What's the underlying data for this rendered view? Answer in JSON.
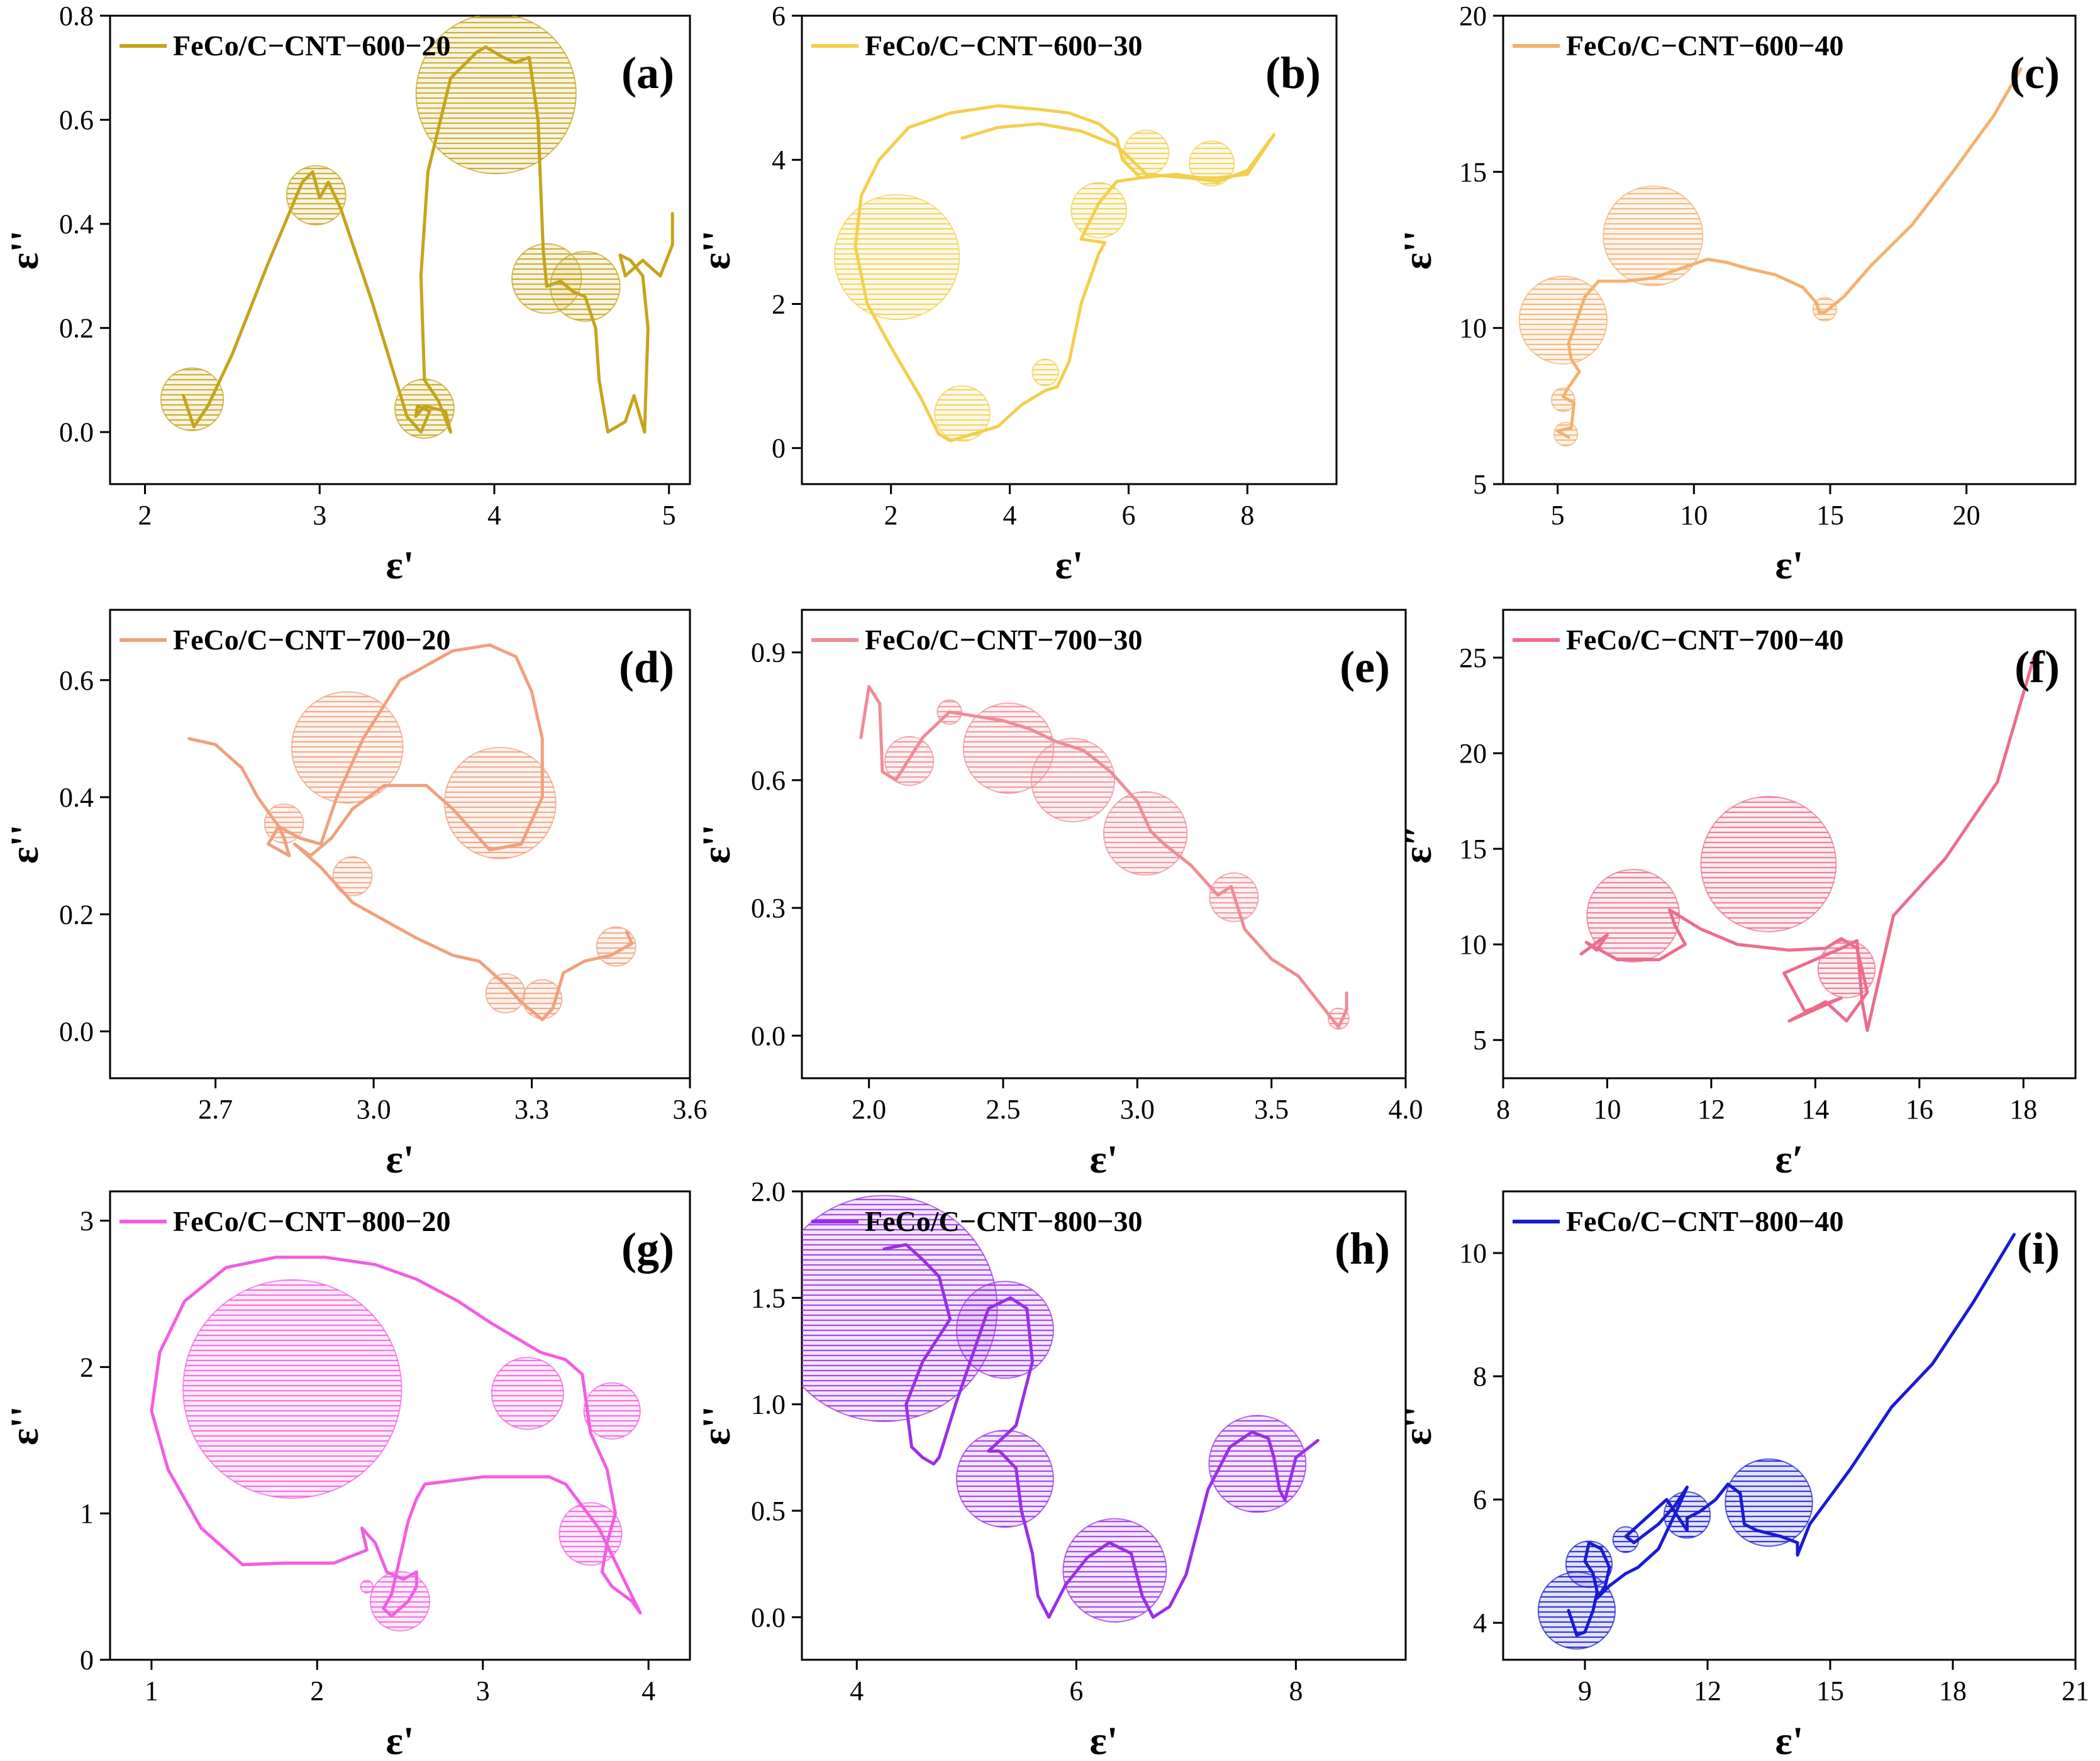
{
  "figure": {
    "panels": [
      {
        "id": "a",
        "label": "(a)",
        "legend": "FeCo/C−CNT−600−20",
        "color": "#c4a41c",
        "xlabel": "ε'",
        "ylabel": "ε''"
      },
      {
        "id": "b",
        "label": "(b)",
        "legend": "FeCo/C−CNT−600−30",
        "color": "#f2cf4e",
        "xlabel": "ε'",
        "ylabel": "ε''"
      },
      {
        "id": "c",
        "label": "(c)",
        "legend": "FeCo/C−CNT−600−40",
        "color": "#f5b06e",
        "xlabel": "ε'",
        "ylabel": "ε''"
      },
      {
        "id": "d",
        "label": "(d)",
        "legend": "FeCo/C−CNT−700−20",
        "color": "#f0a07e",
        "xlabel": "ε'",
        "ylabel": "ε''"
      },
      {
        "id": "e",
        "label": "(e)",
        "legend": "FeCo/C−CNT−700−30",
        "color": "#ef8c95",
        "xlabel": "ε'",
        "ylabel": "ε''"
      },
      {
        "id": "f",
        "label": "(f)",
        "legend": "FeCo/C−CNT−700−40",
        "color": "#ec6d8a",
        "xlabel": "ε′",
        "ylabel": "ε″"
      },
      {
        "id": "g",
        "label": "(g)",
        "legend": "FeCo/C−CNT−800−20",
        "color": "#f25ee0",
        "xlabel": "ε'",
        "ylabel": "ε''"
      },
      {
        "id": "h",
        "label": "(h)",
        "legend": "FeCo/C−CNT−800−30",
        "color": "#9a2fe6",
        "xlabel": "ε'",
        "ylabel": "ε''"
      },
      {
        "id": "i",
        "label": "(i)",
        "legend": "FeCo/C−CNT−800−40",
        "color": "#1a1ad4",
        "xlabel": "ε'",
        "ylabel": "ε''"
      }
    ]
  },
  "chart_data": [
    {
      "type": "line",
      "panel": "a",
      "series": [
        {
          "name": "FeCo/C−CNT−600−20"
        }
      ],
      "xlim": [
        1.8,
        5.12
      ],
      "ylim": [
        -0.1,
        0.8
      ],
      "xticks": [
        2,
        3,
        4,
        5
      ],
      "yticks": [
        0.0,
        0.2,
        0.4,
        0.6,
        0.8
      ],
      "x": [
        2.22,
        2.28,
        2.36,
        2.5,
        2.7,
        2.9,
        2.96,
        3.0,
        3.05,
        3.12,
        3.3,
        3.5,
        3.58,
        3.63,
        3.56,
        3.55,
        3.6,
        3.72,
        3.75,
        3.68,
        3.6,
        3.58,
        3.62,
        3.75,
        3.9,
        3.95,
        4.0,
        4.05,
        4.12,
        4.2,
        4.25,
        4.28,
        4.3,
        4.38,
        4.45,
        4.52,
        4.58,
        4.6,
        4.65,
        4.75,
        4.8,
        4.86,
        4.88,
        4.85,
        4.78,
        4.72,
        4.75,
        4.85,
        4.95,
        5.02,
        5.02
      ],
      "y": [
        0.07,
        0.01,
        0.05,
        0.15,
        0.32,
        0.48,
        0.5,
        0.45,
        0.48,
        0.43,
        0.25,
        0.03,
        0.0,
        0.04,
        0.05,
        0.03,
        0.05,
        0.04,
        0.0,
        0.06,
        0.1,
        0.3,
        0.5,
        0.68,
        0.73,
        0.74,
        0.73,
        0.72,
        0.71,
        0.72,
        0.6,
        0.35,
        0.28,
        0.29,
        0.27,
        0.26,
        0.2,
        0.1,
        0.0,
        0.02,
        0.07,
        0.0,
        0.2,
        0.3,
        0.33,
        0.34,
        0.3,
        0.33,
        0.3,
        0.36,
        0.42
      ],
      "circles": [
        {
          "x": 2.27,
          "y": 0.063,
          "r": 0.09
        },
        {
          "x": 2.98,
          "y": 0.455,
          "r": 0.085
        },
        {
          "x": 3.6,
          "y": 0.045,
          "r": 0.085
        },
        {
          "x": 4.01,
          "y": 0.65,
          "r": 0.23
        },
        {
          "x": 4.3,
          "y": 0.295,
          "r": 0.1
        },
        {
          "x": 4.52,
          "y": 0.28,
          "r": 0.1
        }
      ]
    },
    {
      "type": "line",
      "panel": "b",
      "series": [
        {
          "name": "FeCo/C−CNT−600−30"
        }
      ],
      "xlim": [
        0.5,
        9.5
      ],
      "ylim": [
        -0.5,
        6
      ],
      "xticks": [
        2,
        4,
        6,
        8
      ],
      "yticks": [
        0,
        2,
        4,
        6
      ],
      "x": [
        3.2,
        3.8,
        4.5,
        5.2,
        5.8,
        6.3,
        7.0,
        7.5,
        8.0,
        8.45,
        8.0,
        7.5,
        7.2,
        6.8,
        6.2,
        5.8,
        5.5,
        5.2,
        5.6,
        5.5,
        5.2,
        5.0,
        4.8,
        4.6,
        4.2,
        3.8,
        3.4,
        3.0,
        2.8,
        2.5,
        2.0,
        1.6,
        1.4,
        1.5,
        1.8,
        2.3,
        3.0,
        3.8,
        4.5,
        5.0,
        5.5,
        5.8,
        5.9,
        6.2
      ],
      "y": [
        4.3,
        4.45,
        4.5,
        4.4,
        4.2,
        3.8,
        3.75,
        3.7,
        3.85,
        4.35,
        3.8,
        3.75,
        3.75,
        3.8,
        3.75,
        3.7,
        3.4,
        2.9,
        2.85,
        2.7,
        2.0,
        1.2,
        0.85,
        0.8,
        0.6,
        0.3,
        0.2,
        0.1,
        0.2,
        0.7,
        1.4,
        2.0,
        2.8,
        3.5,
        4.0,
        4.45,
        4.65,
        4.75,
        4.7,
        4.65,
        4.5,
        4.3,
        4.0,
        3.75
      ],
      "circles": [
        {
          "x": 2.1,
          "y": 2.65,
          "r": 0.95
        },
        {
          "x": 3.2,
          "y": 0.48,
          "r": 0.42
        },
        {
          "x": 5.5,
          "y": 3.3,
          "r": 0.42
        },
        {
          "x": 6.3,
          "y": 4.1,
          "r": 0.34
        },
        {
          "x": 7.4,
          "y": 3.95,
          "r": 0.34
        },
        {
          "x": 4.6,
          "y": 1.05,
          "r": 0.2
        }
      ]
    },
    {
      "type": "line",
      "panel": "c",
      "series": [
        {
          "name": "FeCo/C−CNT−600−40"
        }
      ],
      "xlim": [
        3,
        24
      ],
      "ylim": [
        5,
        20
      ],
      "xticks": [
        5,
        10,
        15,
        20
      ],
      "yticks": [
        5,
        10,
        15,
        20
      ],
      "x": [
        5.4,
        5.0,
        5.5,
        5.6,
        5.2,
        5.4,
        5.8,
        5.5,
        5.4,
        6.0,
        6.5,
        7.5,
        8.5,
        9.5,
        10.5,
        11.2,
        12.0,
        13.0,
        14.0,
        14.5,
        14.6,
        14.8,
        15.5,
        16.5,
        18.0,
        19.5,
        21.0,
        22.0
      ],
      "y": [
        6.5,
        6.7,
        6.8,
        7.6,
        7.8,
        8.1,
        8.6,
        9.0,
        9.5,
        11.0,
        11.5,
        11.5,
        11.6,
        11.9,
        12.2,
        12.1,
        11.9,
        11.7,
        11.3,
        10.8,
        10.5,
        10.5,
        11.0,
        12.0,
        13.3,
        15.0,
        16.8,
        18.3
      ],
      "circles": [
        {
          "x": 5.2,
          "y": 10.25,
          "r": 1.5
        },
        {
          "x": 8.5,
          "y": 12.95,
          "r": 1.7
        },
        {
          "x": 5.2,
          "y": 7.7,
          "r": 0.4
        },
        {
          "x": 5.3,
          "y": 6.6,
          "r": 0.4
        },
        {
          "x": 14.8,
          "y": 10.6,
          "r": 0.4
        }
      ]
    },
    {
      "type": "line",
      "panel": "d",
      "series": [
        {
          "name": "FeCo/C−CNT−700−20"
        }
      ],
      "xlim": [
        2.5,
        3.6
      ],
      "ylim": [
        -0.08,
        0.72
      ],
      "xticks": [
        2.7,
        3.0,
        3.3,
        3.6
      ],
      "yticks": [
        0.0,
        0.2,
        0.4,
        0.6
      ],
      "x": [
        2.65,
        2.7,
        2.75,
        2.78,
        2.82,
        2.8,
        2.84,
        2.83,
        2.82,
        2.86,
        2.9,
        2.93,
        2.98,
        3.05,
        3.15,
        3.22,
        3.27,
        3.3,
        3.32,
        3.32,
        3.28,
        3.22,
        3.15,
        3.1,
        3.02,
        2.96,
        2.92,
        2.88,
        2.85,
        2.9,
        2.96,
        3.0,
        3.02,
        3.08,
        3.15,
        3.2,
        3.25,
        3.28,
        3.32,
        3.34,
        3.36,
        3.4,
        3.45,
        3.49,
        3.48
      ],
      "y": [
        0.5,
        0.49,
        0.45,
        0.4,
        0.35,
        0.32,
        0.3,
        0.33,
        0.35,
        0.33,
        0.32,
        0.4,
        0.5,
        0.6,
        0.65,
        0.66,
        0.64,
        0.58,
        0.5,
        0.4,
        0.32,
        0.31,
        0.38,
        0.42,
        0.42,
        0.38,
        0.33,
        0.3,
        0.32,
        0.28,
        0.22,
        0.2,
        0.19,
        0.16,
        0.13,
        0.12,
        0.08,
        0.05,
        0.02,
        0.04,
        0.1,
        0.12,
        0.13,
        0.15,
        0.17
      ],
      "circles": [
        {
          "x": 2.95,
          "y": 0.485,
          "r": 0.1
        },
        {
          "x": 3.24,
          "y": 0.39,
          "r": 0.1
        },
        {
          "x": 2.83,
          "y": 0.355,
          "r": 0.035
        },
        {
          "x": 2.96,
          "y": 0.265,
          "r": 0.035
        },
        {
          "x": 3.25,
          "y": 0.065,
          "r": 0.035
        },
        {
          "x": 3.32,
          "y": 0.055,
          "r": 0.035
        },
        {
          "x": 3.46,
          "y": 0.145,
          "r": 0.035
        }
      ]
    },
    {
      "type": "line",
      "panel": "e",
      "series": [
        {
          "name": "FeCo/C−CNT−700−30"
        }
      ],
      "xlim": [
        1.75,
        4.0
      ],
      "ylim": [
        -0.1,
        1.0
      ],
      "xticks": [
        2.0,
        2.5,
        3.0,
        3.5,
        4.0
      ],
      "yticks": [
        0.0,
        0.3,
        0.6,
        0.9
      ],
      "x": [
        1.97,
        2.0,
        2.04,
        2.05,
        2.1,
        2.15,
        2.2,
        2.3,
        2.4,
        2.5,
        2.6,
        2.7,
        2.8,
        2.9,
        3.0,
        3.05,
        3.1,
        3.2,
        3.3,
        3.35,
        3.4,
        3.5,
        3.6,
        3.7,
        3.75,
        3.78,
        3.78
      ],
      "y": [
        0.7,
        0.82,
        0.78,
        0.62,
        0.6,
        0.65,
        0.7,
        0.76,
        0.75,
        0.74,
        0.72,
        0.69,
        0.67,
        0.62,
        0.55,
        0.48,
        0.45,
        0.4,
        0.33,
        0.35,
        0.25,
        0.18,
        0.14,
        0.06,
        0.02,
        0.06,
        0.1
      ],
      "circles": [
        {
          "x": 2.15,
          "y": 0.645,
          "r": 0.07
        },
        {
          "x": 2.3,
          "y": 0.76,
          "r": 0.035
        },
        {
          "x": 2.52,
          "y": 0.675,
          "r": 0.13
        },
        {
          "x": 2.76,
          "y": 0.6,
          "r": 0.12
        },
        {
          "x": 3.03,
          "y": 0.475,
          "r": 0.12
        },
        {
          "x": 3.36,
          "y": 0.325,
          "r": 0.07
        },
        {
          "x": 3.75,
          "y": 0.04,
          "r": 0.03
        }
      ]
    },
    {
      "type": "line",
      "panel": "f",
      "series": [
        {
          "name": "FeCo/C−CNT−700−40"
        }
      ],
      "xlim": [
        8,
        19
      ],
      "ylim": [
        3,
        27.5
      ],
      "xticks": [
        8,
        10,
        12,
        14,
        16,
        18
      ],
      "yticks": [
        5,
        10,
        15,
        20,
        25
      ],
      "x": [
        9.5,
        10.0,
        9.8,
        9.6,
        10.2,
        11.0,
        11.5,
        11.3,
        11.2,
        11.8,
        12.5,
        13.5,
        14.2,
        14.5,
        14.8,
        15.0,
        14.6,
        14.2,
        13.5,
        14.5,
        13.8,
        13.4,
        14.5,
        14.8,
        14.9,
        15.0,
        15.5,
        16.5,
        17.5,
        18.2
      ],
      "y": [
        9.5,
        10.5,
        9.7,
        10.1,
        9.2,
        9.2,
        10.0,
        11.0,
        11.8,
        10.8,
        10.0,
        9.7,
        9.8,
        10.3,
        9.8,
        7.5,
        6.0,
        7.0,
        6.0,
        7.2,
        6.5,
        8.5,
        9.8,
        10.2,
        7.0,
        5.5,
        11.5,
        14.5,
        18.5,
        25.0
      ],
      "circles": [
        {
          "x": 10.5,
          "y": 11.5,
          "r": 1.3
        },
        {
          "x": 13.1,
          "y": 14.2,
          "r": 1.9
        },
        {
          "x": 14.6,
          "y": 8.7,
          "r": 0.8
        }
      ]
    },
    {
      "type": "line",
      "panel": "g",
      "series": [
        {
          "name": "FeCo/C−CNT−800−20"
        }
      ],
      "xlim": [
        0.75,
        4.25
      ],
      "ylim": [
        0,
        3.2
      ],
      "xticks": [
        1,
        2,
        3,
        4
      ],
      "yticks": [
        0,
        1,
        2,
        3
      ],
      "x": [
        1.55,
        1.3,
        1.1,
        1.0,
        1.05,
        1.2,
        1.45,
        1.75,
        2.05,
        2.35,
        2.6,
        2.85,
        3.05,
        3.2,
        3.35,
        3.5,
        3.6,
        3.65,
        3.75,
        3.8,
        3.75,
        3.72,
        3.78,
        3.9,
        3.95,
        3.7,
        3.5,
        3.4,
        3.0,
        2.65,
        2.6,
        2.55,
        2.5,
        2.45,
        2.4,
        2.45,
        2.55,
        2.6,
        2.6,
        2.52,
        2.42,
        2.35,
        2.27,
        2.3,
        2.1,
        1.8,
        1.55
      ],
      "y": [
        0.65,
        0.9,
        1.3,
        1.7,
        2.1,
        2.45,
        2.68,
        2.75,
        2.75,
        2.7,
        2.6,
        2.45,
        2.3,
        2.2,
        2.1,
        2.05,
        1.95,
        1.55,
        1.3,
        1.0,
        0.8,
        0.6,
        0.5,
        0.4,
        0.32,
        0.9,
        1.2,
        1.25,
        1.25,
        1.2,
        1.1,
        0.95,
        0.7,
        0.45,
        0.35,
        0.3,
        0.4,
        0.5,
        0.6,
        0.55,
        0.6,
        0.8,
        0.9,
        0.75,
        0.66,
        0.66,
        0.65
      ],
      "circles": [
        {
          "x": 1.85,
          "y": 1.85,
          "r": 0.7
        },
        {
          "x": 3.27,
          "y": 1.82,
          "r": 0.23
        },
        {
          "x": 3.78,
          "y": 1.7,
          "r": 0.18
        },
        {
          "x": 3.65,
          "y": 0.86,
          "r": 0.2
        },
        {
          "x": 2.5,
          "y": 0.4,
          "r": 0.19
        },
        {
          "x": 2.3,
          "y": 0.5,
          "r": 0.04
        }
      ]
    },
    {
      "type": "line",
      "panel": "h",
      "series": [
        {
          "name": "FeCo/C−CNT−800−30"
        }
      ],
      "xlim": [
        3.5,
        9.0
      ],
      "ylim": [
        -0.2,
        2.0
      ],
      "xticks": [
        4,
        6,
        8
      ],
      "yticks": [
        0.0,
        0.5,
        1.0,
        1.5,
        2.0
      ],
      "x": [
        4.25,
        4.45,
        4.6,
        4.75,
        4.85,
        4.6,
        4.45,
        4.5,
        4.6,
        4.7,
        4.75,
        4.9,
        5.1,
        5.2,
        5.4,
        5.55,
        5.6,
        5.45,
        5.2,
        5.3,
        5.45,
        5.5,
        5.6,
        5.65,
        5.75,
        5.9,
        6.1,
        6.3,
        6.5,
        6.6,
        6.7,
        6.85,
        6.9,
        7.0,
        7.1,
        7.2,
        7.4,
        7.6,
        7.75,
        7.8,
        7.85,
        7.9,
        8.0,
        8.2
      ],
      "y": [
        1.73,
        1.75,
        1.68,
        1.6,
        1.4,
        1.2,
        1.0,
        0.8,
        0.75,
        0.72,
        0.75,
        1.0,
        1.3,
        1.45,
        1.5,
        1.45,
        1.2,
        0.9,
        0.78,
        0.78,
        0.7,
        0.5,
        0.3,
        0.1,
        0.0,
        0.15,
        0.28,
        0.35,
        0.3,
        0.1,
        0.0,
        0.05,
        0.1,
        0.2,
        0.4,
        0.6,
        0.8,
        0.87,
        0.84,
        0.75,
        0.6,
        0.55,
        0.75,
        0.83
      ],
      "circles": [
        {
          "x": 4.25,
          "y": 1.45,
          "r": 0.7
        },
        {
          "x": 5.35,
          "y": 1.35,
          "r": 0.3
        },
        {
          "x": 5.35,
          "y": 0.65,
          "r": 0.3
        },
        {
          "x": 6.35,
          "y": 0.22,
          "r": 0.32
        },
        {
          "x": 7.65,
          "y": 0.72,
          "r": 0.3
        }
      ]
    },
    {
      "type": "line",
      "panel": "i",
      "series": [
        {
          "name": "FeCo/C−CNT−800−40"
        }
      ],
      "xlim": [
        7,
        21
      ],
      "ylim": [
        3.4,
        11
      ],
      "xticks": [
        9,
        12,
        15,
        18,
        21
      ],
      "yticks": [
        4,
        6,
        8,
        10
      ],
      "x": [
        8.6,
        8.8,
        9.0,
        9.2,
        9.3,
        9.2,
        9.0,
        9.1,
        9.4,
        9.6,
        9.5,
        9.3,
        9.6,
        10.0,
        10.3,
        10.8,
        11.3,
        11.5,
        11.2,
        10.8,
        10.2,
        10.0,
        10.5,
        11.0,
        11.5,
        11.5,
        11.8,
        12.2,
        12.5,
        12.8,
        12.9,
        13.2,
        13.8,
        14.2,
        14.2,
        14.5,
        15.5,
        16.5,
        17.5,
        18.5,
        19.5
      ],
      "y": [
        4.2,
        3.8,
        3.85,
        4.2,
        4.5,
        4.8,
        5.0,
        5.3,
        5.2,
        4.9,
        4.6,
        4.4,
        4.6,
        4.8,
        4.9,
        5.2,
        5.9,
        6.2,
        5.9,
        5.6,
        5.3,
        5.4,
        5.7,
        6.0,
        5.5,
        5.7,
        5.8,
        6.0,
        6.25,
        6.1,
        5.6,
        5.5,
        5.4,
        5.3,
        5.1,
        5.6,
        6.5,
        7.5,
        8.2,
        9.2,
        10.3
      ],
      "circles": [
        {
          "x": 8.8,
          "y": 4.2,
          "r": 0.75
        },
        {
          "x": 9.1,
          "y": 4.95,
          "r": 0.45
        },
        {
          "x": 11.5,
          "y": 5.75,
          "r": 0.45
        },
        {
          "x": 13.5,
          "y": 5.95,
          "r": 0.85
        },
        {
          "x": 10.0,
          "y": 5.35,
          "r": 0.25
        }
      ]
    }
  ]
}
